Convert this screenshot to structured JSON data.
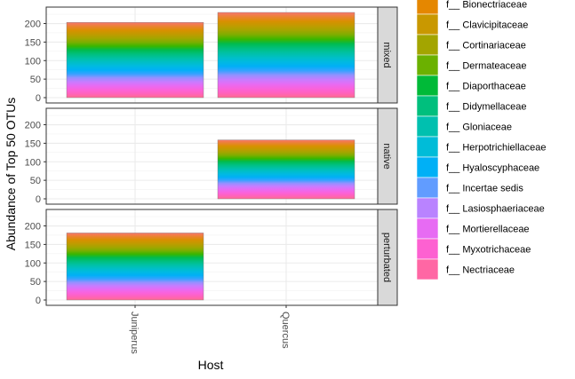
{
  "chart_data": {
    "type": "bar",
    "stacked": true,
    "ylabel": "Abundance of Top 50 OTUs",
    "xlabel": "Host",
    "categories": [
      "Juniperus",
      "Quercus"
    ],
    "ylim": [
      0,
      230
    ],
    "yticks": [
      0,
      50,
      100,
      150,
      200
    ],
    "panels": [
      {
        "strip": "mixed",
        "totals": [
          203,
          230
        ]
      },
      {
        "strip": "native",
        "totals": [
          null,
          159
        ]
      },
      {
        "strip": "perturbated",
        "totals": [
          181,
          null
        ]
      }
    ],
    "grid": true,
    "legend_position": "right",
    "legend": [
      {
        "label": "f__ Bionectriaceae",
        "color": "#E58700"
      },
      {
        "label": "f__ Clavicipitaceae",
        "color": "#C99800"
      },
      {
        "label": "f__ Cortinariaceae",
        "color": "#A3A500"
      },
      {
        "label": "f__ Dermateaceae",
        "color": "#6BB100"
      },
      {
        "label": "f__ Diaporthaceae",
        "color": "#00BA38"
      },
      {
        "label": "f__ Didymellaceae",
        "color": "#00BF7D"
      },
      {
        "label": "f__ Gloniaceae",
        "color": "#00C0AF"
      },
      {
        "label": "f__ Herpotrichiellaceae",
        "color": "#00BCD8"
      },
      {
        "label": "f__ Hyaloscyphaceae",
        "color": "#00B0F6"
      },
      {
        "label": "f__ Incertae sedis",
        "color": "#619CFF"
      },
      {
        "label": "f__ Lasiosphaeriaceae",
        "color": "#B983FF"
      },
      {
        "label": "f__ Mortierellaceae",
        "color": "#E76BF3"
      },
      {
        "label": "f__ Myxotrichaceae",
        "color": "#FD61D1"
      },
      {
        "label": "f__ Nectriaceae",
        "color": "#FF67A4"
      }
    ]
  }
}
